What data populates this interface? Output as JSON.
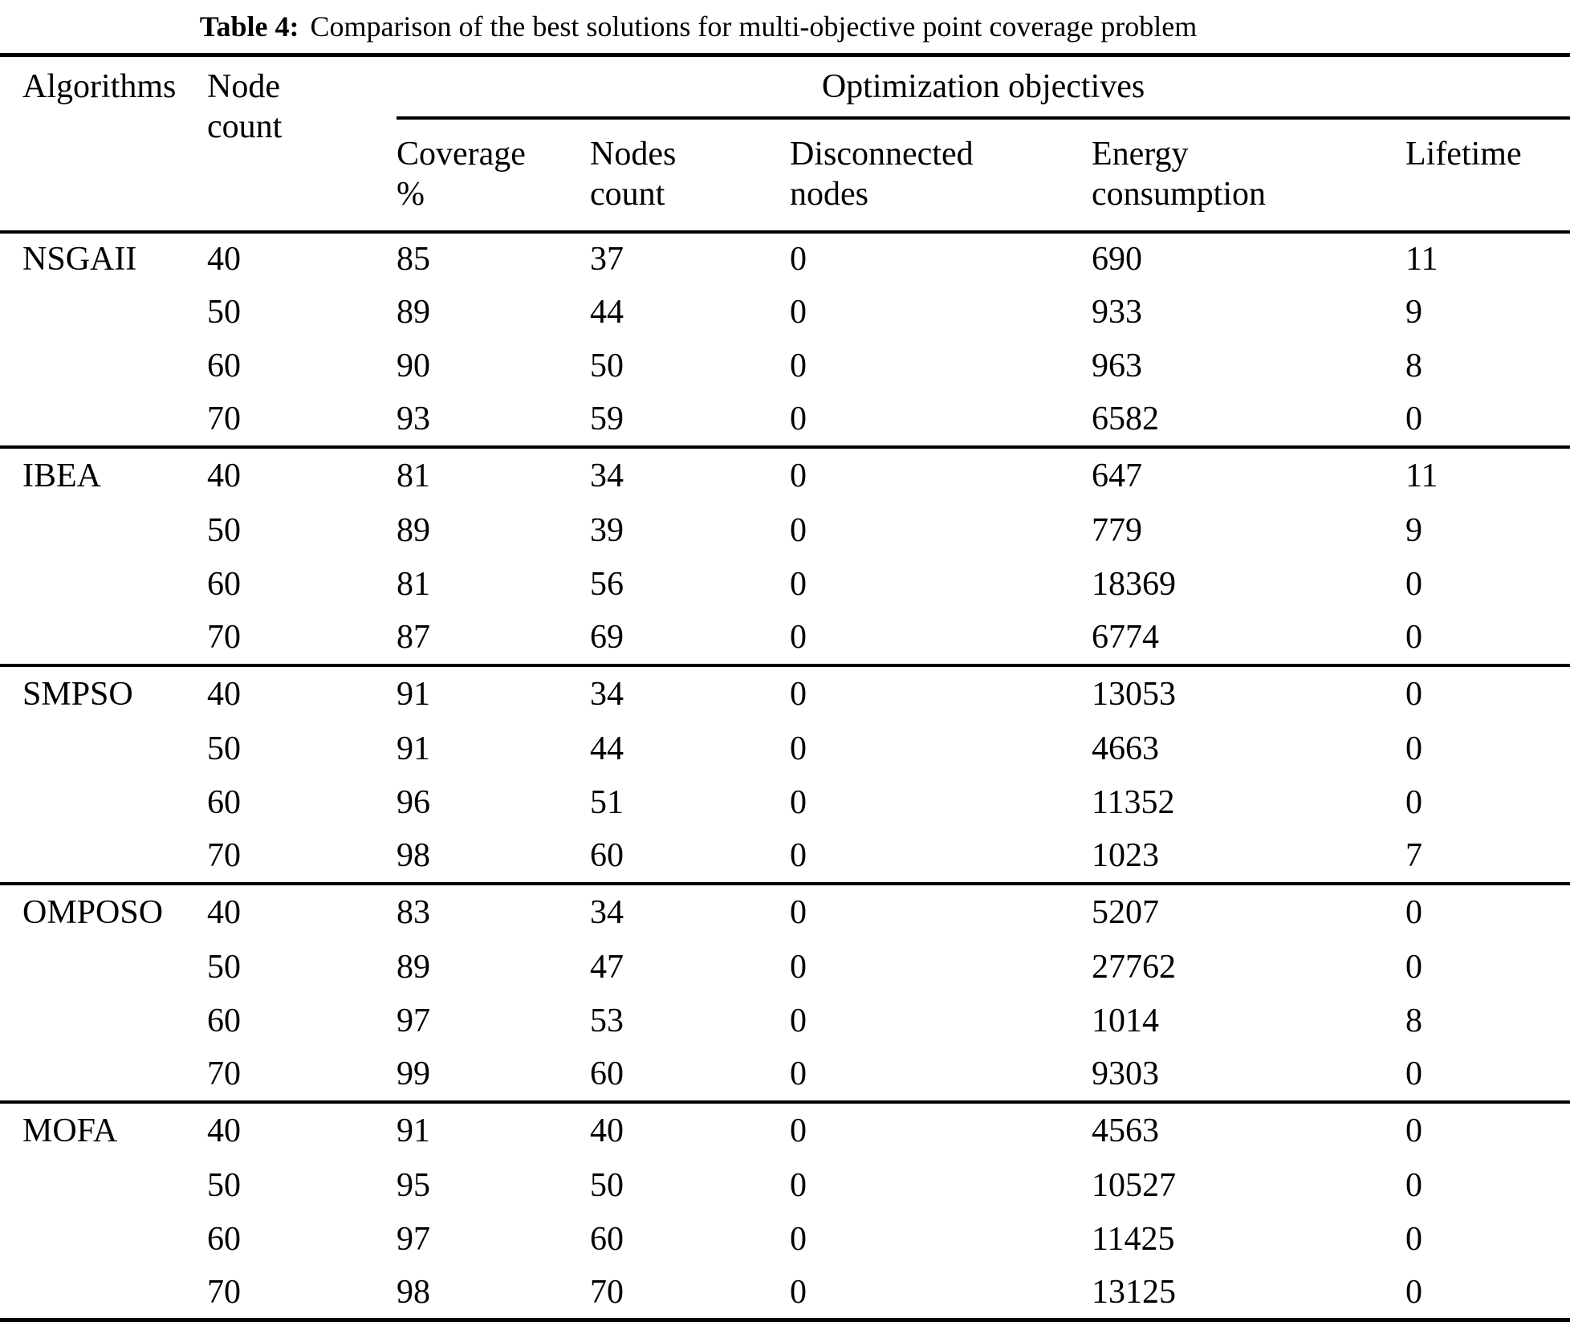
{
  "title": {
    "label": "Table 4:",
    "text": "Comparison of the best solutions for multi-objective point coverage problem"
  },
  "table": {
    "header": {
      "algorithms": "Algorithms",
      "node_count": "Node\ncount",
      "group": "Optimization objectives",
      "columns": [
        "Coverage\n%",
        "Nodes\ncount",
        "Disconnected\nnodes",
        "Energy\nconsumption",
        "Lifetime"
      ]
    },
    "groups": [
      {
        "algorithm": "NSGAII",
        "rows": [
          [
            40,
            85,
            37,
            0,
            690,
            11
          ],
          [
            50,
            89,
            44,
            0,
            933,
            9
          ],
          [
            60,
            90,
            50,
            0,
            963,
            8
          ],
          [
            70,
            93,
            59,
            0,
            6582,
            0
          ]
        ]
      },
      {
        "algorithm": "IBEA",
        "rows": [
          [
            40,
            81,
            34,
            0,
            647,
            11
          ],
          [
            50,
            89,
            39,
            0,
            779,
            9
          ],
          [
            60,
            81,
            56,
            0,
            18369,
            0
          ],
          [
            70,
            87,
            69,
            0,
            6774,
            0
          ]
        ]
      },
      {
        "algorithm": "SMPSO",
        "rows": [
          [
            40,
            91,
            34,
            0,
            13053,
            0
          ],
          [
            50,
            91,
            44,
            0,
            4663,
            0
          ],
          [
            60,
            96,
            51,
            0,
            11352,
            0
          ],
          [
            70,
            98,
            60,
            0,
            1023,
            7
          ]
        ]
      },
      {
        "algorithm": "OMPOSO",
        "rows": [
          [
            40,
            83,
            34,
            0,
            5207,
            0
          ],
          [
            50,
            89,
            47,
            0,
            27762,
            0
          ],
          [
            60,
            97,
            53,
            0,
            1014,
            8
          ],
          [
            70,
            99,
            60,
            0,
            9303,
            0
          ]
        ]
      },
      {
        "algorithm": "MOFA",
        "rows": [
          [
            40,
            91,
            40,
            0,
            4563,
            0
          ],
          [
            50,
            95,
            50,
            0,
            10527,
            0
          ],
          [
            60,
            97,
            60,
            0,
            11425,
            0
          ],
          [
            70,
            98,
            70,
            0,
            13125,
            0
          ]
        ]
      }
    ]
  }
}
